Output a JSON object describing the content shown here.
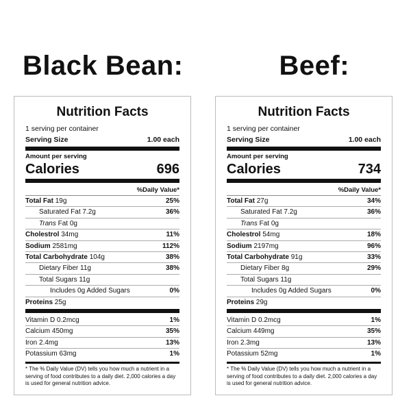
{
  "labels": [
    {
      "heading": "Black Bean:",
      "title": "Nutrition Facts",
      "servings": "1 serving per container",
      "serving_size_label": "Serving Size",
      "serving_size": "1.00 each",
      "amount_per_serving": "Amount per serving",
      "calories_label": "Calories",
      "calories": "696",
      "daily_value_header": "%Daily Value*",
      "rows": [
        {
          "label": "Total Fat",
          "amount": "19g",
          "dv": "25%"
        },
        {
          "label": "Saturated Fat",
          "amount": "7.2g",
          "dv": "36%"
        },
        {
          "prefix": "Trans",
          "label": "Fat",
          "amount": "0g"
        },
        {
          "label": "Cholestrol",
          "amount": "34mg",
          "dv": "11%"
        },
        {
          "label": "Sodium",
          "amount": "2581mg",
          "dv": "112%"
        },
        {
          "label": "Total Carbohydrate",
          "amount": "104g",
          "dv": "38%"
        },
        {
          "label": "Dietary Fiber",
          "amount": "11g",
          "dv": "38%"
        },
        {
          "label": "Total Sugars",
          "amount": "11g"
        },
        {
          "label": "Includes 0g Added Sugars",
          "dv": "0%"
        },
        {
          "label": "Proteins",
          "amount": "25g"
        }
      ],
      "vitamins": [
        {
          "label": "Vitamin D",
          "amount": "0.2mcg",
          "dv": "1%"
        },
        {
          "label": "Calcium",
          "amount": "450mg",
          "dv": "35%"
        },
        {
          "label": "Iron",
          "amount": "2.4mg",
          "dv": "13%"
        },
        {
          "label": "Potassium",
          "amount": "63mg",
          "dv": "1%"
        }
      ],
      "footnote": "* The % Daily Value (DV) tells you how much a nutrient in a serving of food contributes to a daily diet. 2,000 calories a day is used for general nutrition advice."
    },
    {
      "heading": "Beef:",
      "title": "Nutrition Facts",
      "servings": "1 serving per container",
      "serving_size_label": "Serving Size",
      "serving_size": "1.00 each",
      "amount_per_serving": "Amount per serving",
      "calories_label": "Calories",
      "calories": "734",
      "daily_value_header": "%Daily Value*",
      "rows": [
        {
          "label": "Total Fat",
          "amount": "27g",
          "dv": "34%"
        },
        {
          "label": "Saturated Fat",
          "amount": "7.2g",
          "dv": "36%"
        },
        {
          "prefix": "Trans",
          "label": "Fat",
          "amount": "0g"
        },
        {
          "label": "Cholestrol",
          "amount": "54mg",
          "dv": "18%"
        },
        {
          "label": "Sodium",
          "amount": "2197mg",
          "dv": "96%"
        },
        {
          "label": "Total Carbohydrate",
          "amount": "91g",
          "dv": "33%"
        },
        {
          "label": "Dietary Fiber",
          "amount": "8g",
          "dv": "29%"
        },
        {
          "label": "Total Sugars",
          "amount": "11g"
        },
        {
          "label": "Includes 0g Added Sugars",
          "dv": "0%"
        },
        {
          "label": "Proteins",
          "amount": "29g"
        }
      ],
      "vitamins": [
        {
          "label": "Vitamin D",
          "amount": "0.2mcg",
          "dv": "1%"
        },
        {
          "label": "Calcium",
          "amount": "449mg",
          "dv": "35%"
        },
        {
          "label": "Iron",
          "amount": "2.3mg",
          "dv": "13%"
        },
        {
          "label": "Potassium",
          "amount": "52mg",
          "dv": "1%"
        }
      ],
      "footnote": "* The % Daily Value (DV) tells you how much a nutrient in a serving of food contributes to a daily diet. 2,000 calories a day is used for general nutrition advice."
    }
  ]
}
